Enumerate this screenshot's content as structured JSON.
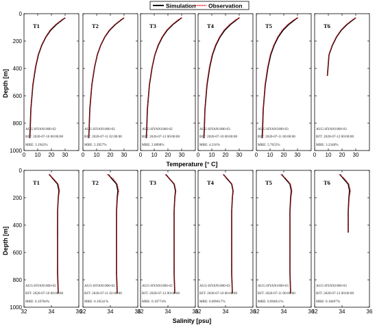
{
  "legend": {
    "placement": "top-center",
    "items": [
      {
        "label": "Simulation",
        "color": "#000000",
        "style": "solid"
      },
      {
        "label": "Observation",
        "color": "#e8141d",
        "style": "dotted"
      }
    ]
  },
  "ylabel": "Depth [m]",
  "rows": [
    {
      "xlabel": "Temperature [° C]"
    },
    {
      "xlabel": "Salinity [psu]"
    }
  ],
  "chart_data": [
    {
      "type": "line",
      "row": 0,
      "panel_title": "T1",
      "xlim": [
        0,
        40
      ],
      "ylim": [
        0,
        1000
      ],
      "xticks": [
        "0",
        "10",
        "20",
        "30"
      ],
      "yticks": [
        "0",
        "200",
        "400",
        "600",
        "800",
        "1000"
      ],
      "annotations": [
        "AUG-HYAN1000-02",
        "BJT: 2020-07-10 00:00:00",
        "MRE: 3.1942%"
      ],
      "series": [
        {
          "name": "Simulation",
          "x": [
            30.0,
            28.0,
            23.5,
            19.5,
            16.0,
            13.0,
            10.5,
            8.5,
            6.5,
            5.0,
            4.5,
            4.2
          ],
          "y": [
            30,
            45,
            80,
            120,
            170,
            230,
            300,
            390,
            520,
            700,
            850,
            910
          ]
        },
        {
          "name": "Observation",
          "x": [
            30.2,
            27.5,
            23.0,
            19.0,
            15.8,
            12.8,
            10.3,
            8.3,
            6.4,
            5.1,
            4.6,
            4.3
          ],
          "y": [
            30,
            45,
            80,
            120,
            170,
            230,
            300,
            390,
            520,
            700,
            850,
            910
          ]
        }
      ]
    },
    {
      "type": "line",
      "row": 0,
      "panel_title": "T2",
      "xlim": [
        0,
        40
      ],
      "ylim": [
        0,
        1000
      ],
      "xticks": [
        "0",
        "10",
        "20",
        "30"
      ],
      "yticks": [
        "0",
        "200",
        "400",
        "600",
        "800",
        "1000"
      ],
      "annotations": [
        "AUG-HYAN1000-02",
        "BJT: 2020-07-11 02:00:00",
        "MRE: 2.3957%"
      ],
      "series": [
        {
          "name": "Simulation",
          "x": [
            30.0,
            28.0,
            23.5,
            19.5,
            16.0,
            13.0,
            10.5,
            8.5,
            6.5,
            5.0,
            4.5,
            4.2
          ],
          "y": [
            30,
            45,
            80,
            120,
            170,
            230,
            300,
            390,
            520,
            700,
            850,
            910
          ]
        },
        {
          "name": "Observation",
          "x": [
            30.1,
            27.6,
            23.2,
            19.2,
            15.9,
            12.9,
            10.4,
            8.4,
            6.5,
            5.1,
            4.5,
            4.2
          ],
          "y": [
            30,
            45,
            80,
            120,
            170,
            230,
            300,
            390,
            520,
            700,
            850,
            910
          ]
        }
      ]
    },
    {
      "type": "line",
      "row": 0,
      "panel_title": "T3",
      "xlim": [
        0,
        40
      ],
      "ylim": [
        0,
        1000
      ],
      "xticks": [
        "0",
        "10",
        "20",
        "30"
      ],
      "yticks": [
        "0",
        "200",
        "400",
        "600",
        "800",
        "1000"
      ],
      "annotations": [
        "AUG-HYAN1000-02",
        "BJT: 2020-07-12 00:00:00",
        "MRE: 2.6898%"
      ],
      "series": [
        {
          "name": "Simulation",
          "x": [
            30.0,
            28.0,
            23.5,
            19.5,
            16.0,
            13.0,
            10.5,
            8.5,
            6.5,
            5.0,
            4.5,
            4.2
          ],
          "y": [
            30,
            45,
            80,
            120,
            170,
            230,
            300,
            390,
            520,
            700,
            850,
            910
          ]
        },
        {
          "name": "Observation",
          "x": [
            30.3,
            27.4,
            23.1,
            19.1,
            15.7,
            12.7,
            10.4,
            8.4,
            6.4,
            5.1,
            4.6,
            4.3
          ],
          "y": [
            30,
            45,
            80,
            120,
            170,
            230,
            300,
            390,
            520,
            700,
            850,
            910
          ]
        }
      ]
    },
    {
      "type": "line",
      "row": 0,
      "panel_title": "T4",
      "xlim": [
        0,
        40
      ],
      "ylim": [
        0,
        1000
      ],
      "xticks": [
        "0",
        "10",
        "20",
        "30"
      ],
      "yticks": [
        "0",
        "200",
        "400",
        "600",
        "800",
        "1000"
      ],
      "annotations": [
        "AUG-HYAN1000-03",
        "BJT: 2020-07-10 00:00:00",
        "MRE: 4.216%"
      ],
      "series": [
        {
          "name": "Simulation",
          "x": [
            30.0,
            28.0,
            23.5,
            19.5,
            16.0,
            13.0,
            10.5,
            8.5,
            6.5,
            5.0,
            4.5,
            4.2
          ],
          "y": [
            30,
            45,
            80,
            120,
            170,
            230,
            300,
            390,
            520,
            700,
            850,
            910
          ]
        },
        {
          "name": "Observation",
          "x": [
            30.4,
            27.3,
            22.8,
            18.9,
            15.6,
            12.6,
            10.2,
            8.2,
            6.3,
            5.0,
            4.6,
            4.3
          ],
          "y": [
            30,
            45,
            80,
            120,
            170,
            230,
            300,
            390,
            520,
            700,
            850,
            910
          ]
        }
      ]
    },
    {
      "type": "line",
      "row": 0,
      "panel_title": "T5",
      "xlim": [
        0,
        40
      ],
      "ylim": [
        0,
        1000
      ],
      "xticks": [
        "0",
        "10",
        "20",
        "30"
      ],
      "yticks": [
        "0",
        "200",
        "400",
        "600",
        "800",
        "1000"
      ],
      "annotations": [
        "AUG-HYAN1000-03",
        "BJT: 2020-07-11 00:00:00",
        "MRE: 5.7655%"
      ],
      "series": [
        {
          "name": "Simulation",
          "x": [
            30.0,
            28.0,
            23.5,
            19.5,
            16.0,
            13.0,
            10.5,
            8.5,
            6.5,
            5.0,
            4.5,
            4.2
          ],
          "y": [
            30,
            45,
            80,
            120,
            170,
            230,
            300,
            390,
            520,
            700,
            850,
            910
          ]
        },
        {
          "name": "Observation",
          "x": [
            30.5,
            27.2,
            22.7,
            18.8,
            15.5,
            12.6,
            10.1,
            8.2,
            6.3,
            5.1,
            4.7,
            4.4
          ],
          "y": [
            30,
            45,
            80,
            120,
            170,
            230,
            300,
            390,
            520,
            700,
            850,
            910
          ]
        }
      ]
    },
    {
      "type": "line",
      "row": 0,
      "panel_title": "T6",
      "xlim": [
        0,
        40
      ],
      "ylim": [
        0,
        1000
      ],
      "xticks": [
        "0",
        "10",
        "20",
        "30"
      ],
      "yticks": [
        "0",
        "200",
        "400",
        "600",
        "800",
        "1000"
      ],
      "annotations": [
        "AUG-HYAN1000-03",
        "BJT: 2020-07-12 00:00:00",
        "MRE: 3.2348%"
      ],
      "series": [
        {
          "name": "Simulation",
          "x": [
            30.0,
            28.0,
            23.5,
            19.5,
            16.0,
            13.0,
            10.5,
            9.3
          ],
          "y": [
            30,
            45,
            80,
            120,
            170,
            230,
            300,
            455
          ]
        },
        {
          "name": "Observation",
          "x": [
            30.2,
            27.6,
            23.1,
            19.2,
            15.8,
            12.8,
            10.4,
            9.2
          ],
          "y": [
            30,
            45,
            80,
            120,
            170,
            230,
            300,
            455
          ]
        }
      ]
    },
    {
      "type": "line",
      "row": 1,
      "panel_title": "T1",
      "xlim": [
        32,
        36
      ],
      "ylim": [
        0,
        1000
      ],
      "xticks": [
        "32",
        "34",
        "36"
      ],
      "yticks": [
        "0",
        "200",
        "400",
        "600",
        "800",
        "1000"
      ],
      "annotations": [
        "AUG-HYAN1000-02",
        "BJT: 2020-07-10 00:00:00",
        "MRE: 0.10784%"
      ],
      "series": [
        {
          "name": "Simulation",
          "x": [
            33.85,
            34.1,
            34.45,
            34.55,
            34.5,
            34.45,
            34.45,
            34.45,
            34.45,
            34.5
          ],
          "y": [
            30,
            60,
            100,
            150,
            200,
            300,
            450,
            600,
            750,
            900
          ]
        },
        {
          "name": "Observation",
          "x": [
            33.8,
            34.15,
            34.5,
            34.6,
            34.5,
            34.45,
            34.43,
            34.45,
            34.47,
            34.5
          ],
          "y": [
            30,
            60,
            100,
            150,
            200,
            300,
            450,
            600,
            750,
            900
          ]
        }
      ]
    },
    {
      "type": "line",
      "row": 1,
      "panel_title": "T2",
      "xlim": [
        32,
        36
      ],
      "ylim": [
        0,
        1000
      ],
      "xticks": [
        "32",
        "34",
        "36"
      ],
      "yticks": [
        "0",
        "200",
        "400",
        "600",
        "800",
        "1000"
      ],
      "annotations": [
        "AUG-HYAN1000-02",
        "BJT: 2020-07-11 02:00:00",
        "MRE: 0.10541%"
      ],
      "series": [
        {
          "name": "Simulation",
          "x": [
            33.85,
            34.1,
            34.45,
            34.55,
            34.5,
            34.45,
            34.45,
            34.45,
            34.45,
            34.5
          ],
          "y": [
            30,
            60,
            100,
            150,
            200,
            300,
            450,
            600,
            750,
            900
          ]
        },
        {
          "name": "Observation",
          "x": [
            33.75,
            34.2,
            34.5,
            34.62,
            34.52,
            34.46,
            34.44,
            34.45,
            34.46,
            34.5
          ],
          "y": [
            30,
            60,
            100,
            150,
            200,
            300,
            450,
            600,
            750,
            900
          ]
        }
      ]
    },
    {
      "type": "line",
      "row": 1,
      "panel_title": "T3",
      "xlim": [
        32,
        36
      ],
      "ylim": [
        0,
        1000
      ],
      "xticks": [
        "32",
        "34",
        "36"
      ],
      "yticks": [
        "0",
        "200",
        "400",
        "600",
        "800",
        "1000"
      ],
      "annotations": [
        "AUG-HYAN1000-02",
        "BJT: 2020-07-12 00:00:00",
        "MRE: 0.10774%"
      ],
      "series": [
        {
          "name": "Simulation",
          "x": [
            33.85,
            34.1,
            34.45,
            34.55,
            34.5,
            34.45,
            34.45,
            34.45,
            34.45,
            34.5
          ],
          "y": [
            30,
            60,
            100,
            150,
            200,
            300,
            450,
            600,
            750,
            900
          ]
        },
        {
          "name": "Observation",
          "x": [
            33.8,
            34.12,
            34.48,
            34.58,
            34.51,
            34.45,
            34.44,
            34.45,
            34.46,
            34.5
          ],
          "y": [
            30,
            60,
            100,
            150,
            200,
            300,
            450,
            600,
            750,
            900
          ]
        }
      ]
    },
    {
      "type": "line",
      "row": 1,
      "panel_title": "T4",
      "xlim": [
        32,
        36
      ],
      "ylim": [
        0,
        1000
      ],
      "xticks": [
        "32",
        "34",
        "36"
      ],
      "yticks": [
        "0",
        "200",
        "400",
        "600",
        "800",
        "1000"
      ],
      "annotations": [
        "AUG-HYAN1000-03",
        "BJT: 2020-07-10 00:00:00",
        "MRE: 0.069617%"
      ],
      "series": [
        {
          "name": "Simulation",
          "x": [
            33.85,
            34.1,
            34.45,
            34.55,
            34.5,
            34.45,
            34.45,
            34.45,
            34.45,
            34.5
          ],
          "y": [
            30,
            60,
            100,
            150,
            200,
            300,
            450,
            600,
            750,
            900
          ]
        },
        {
          "name": "Observation",
          "x": [
            33.82,
            34.14,
            34.47,
            34.57,
            34.5,
            34.45,
            34.45,
            34.45,
            34.46,
            34.5
          ],
          "y": [
            30,
            60,
            100,
            150,
            200,
            300,
            450,
            600,
            750,
            900
          ]
        }
      ]
    },
    {
      "type": "line",
      "row": 1,
      "panel_title": "T5",
      "xlim": [
        32,
        36
      ],
      "ylim": [
        0,
        1000
      ],
      "xticks": [
        "32",
        "34",
        "36"
      ],
      "yticks": [
        "0",
        "200",
        "400",
        "600",
        "800",
        "1000"
      ],
      "annotations": [
        "AUG-HYAN1000-03",
        "BJT: 2020-07-11 00:00:00",
        "MRE: 0.094011%"
      ],
      "series": [
        {
          "name": "Simulation",
          "x": [
            33.85,
            34.1,
            34.45,
            34.55,
            34.5,
            34.45,
            34.45,
            34.45,
            34.45,
            34.5
          ],
          "y": [
            30,
            60,
            100,
            150,
            200,
            300,
            450,
            600,
            750,
            900
          ]
        },
        {
          "name": "Observation",
          "x": [
            33.78,
            34.16,
            34.49,
            34.6,
            34.52,
            34.46,
            34.44,
            34.45,
            34.46,
            34.5
          ],
          "y": [
            30,
            60,
            100,
            150,
            200,
            300,
            450,
            600,
            750,
            900
          ]
        }
      ]
    },
    {
      "type": "line",
      "row": 1,
      "panel_title": "T6",
      "xlim": [
        32,
        36
      ],
      "ylim": [
        0,
        1000
      ],
      "xticks": [
        "32",
        "34",
        "36"
      ],
      "yticks": [
        "0",
        "200",
        "400",
        "600",
        "800",
        "1000"
      ],
      "annotations": [
        "AUG-HYAN1000-03",
        "BJT: 2020-07-12 00:00:00",
        "MRE: 0.18497%"
      ],
      "series": [
        {
          "name": "Simulation",
          "x": [
            33.85,
            34.1,
            34.45,
            34.55,
            34.5,
            34.45,
            34.45
          ],
          "y": [
            30,
            60,
            100,
            150,
            200,
            300,
            455
          ]
        },
        {
          "name": "Observation",
          "x": [
            33.78,
            34.18,
            34.5,
            34.62,
            34.52,
            34.46,
            34.45
          ],
          "y": [
            30,
            60,
            100,
            150,
            200,
            300,
            455
          ]
        }
      ]
    }
  ]
}
